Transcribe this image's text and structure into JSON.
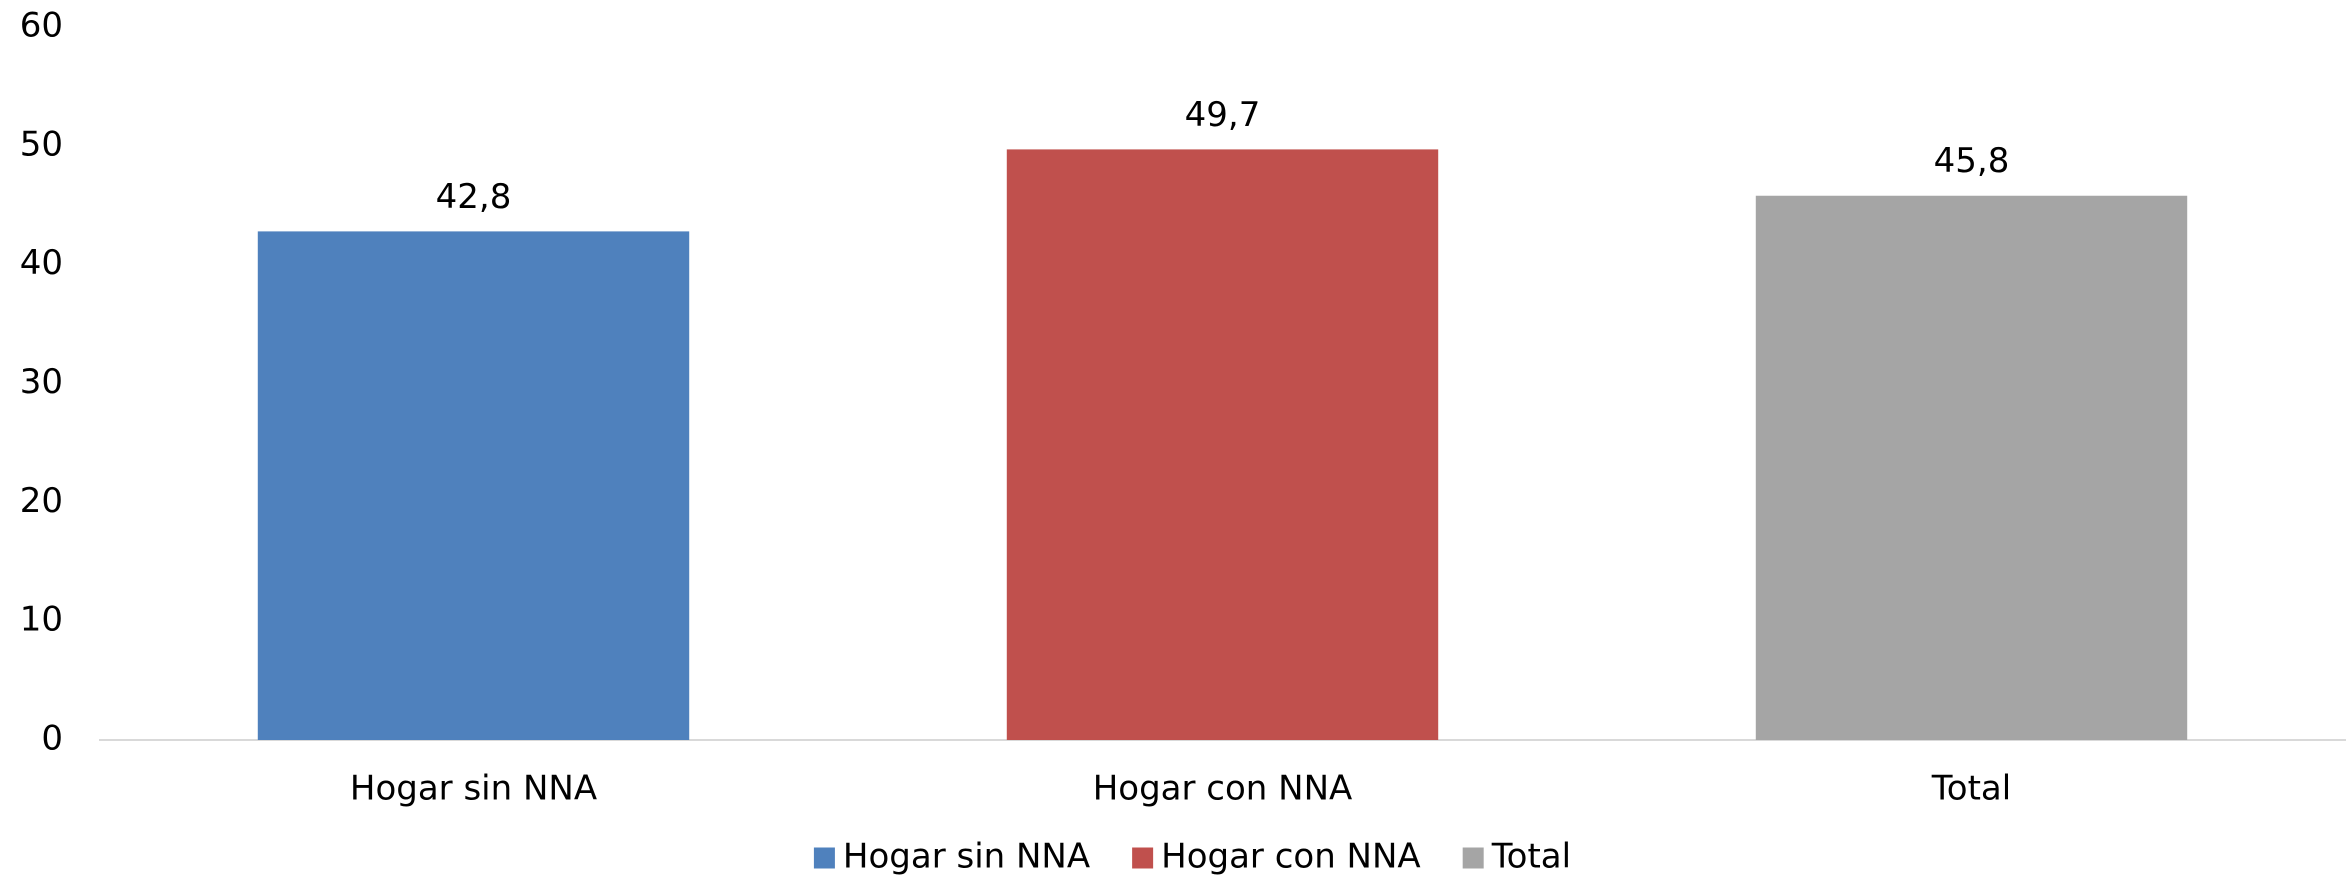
{
  "chart_data": {
    "type": "bar",
    "categories": [
      "Hogar sin NNA",
      "Hogar con NNA",
      "Total"
    ],
    "values": [
      42.8,
      49.7,
      45.8
    ],
    "value_labels": [
      "42,8",
      "49,7",
      "45,8"
    ],
    "colors": [
      "#4f81bd",
      "#c0504d",
      "#a5a5a5"
    ],
    "ylim": [
      0,
      60
    ],
    "yticks": [
      0,
      10,
      20,
      30,
      40,
      50,
      60
    ],
    "grid": false,
    "legend": "bottom"
  }
}
